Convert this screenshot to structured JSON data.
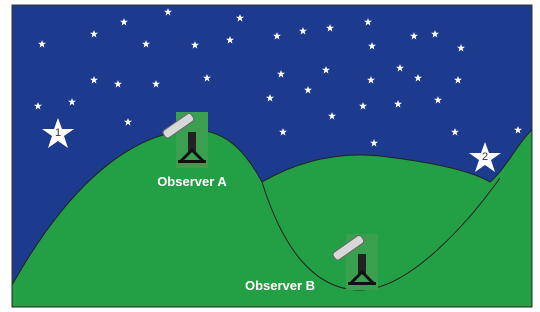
{
  "nodes": [
    {
      "label": "1"
    },
    {
      "label": "2"
    },
    {
      "label": "Observer A"
    },
    {
      "label": "Observer B"
    }
  ]
}
